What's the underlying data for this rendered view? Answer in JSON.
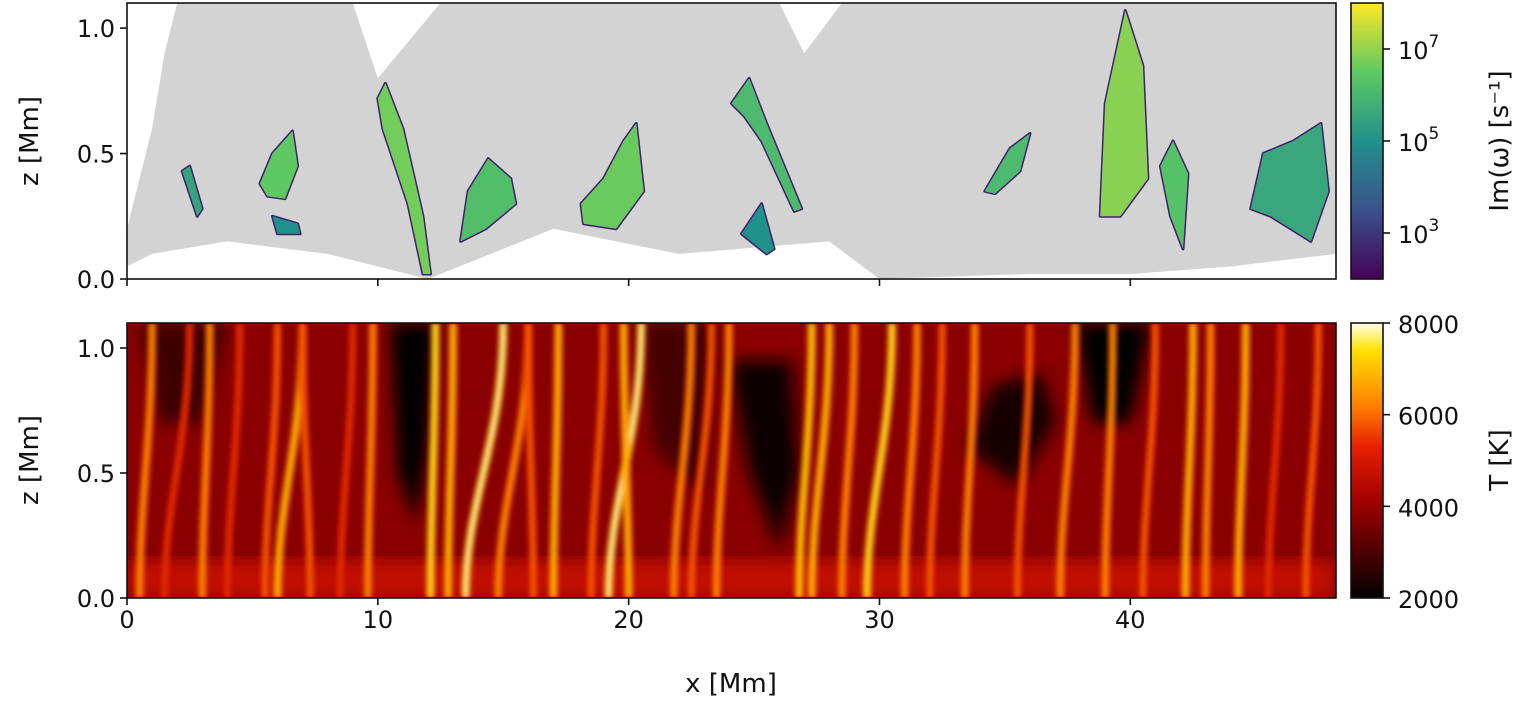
{
  "chart_data": [
    {
      "type": "heatmap",
      "xlabel": "",
      "ylabel": "z [Mm]",
      "xlim": [
        0,
        48.2
      ],
      "ylim": [
        0,
        1.1
      ],
      "xticks": [
        "0",
        "10",
        "20",
        "30",
        "40"
      ],
      "xtick_values": [
        0,
        10,
        20,
        30,
        40
      ],
      "xticklabels_visible": false,
      "yticks": [
        "0.0",
        "0.5",
        "1.0"
      ],
      "ytick_values": [
        0,
        0.5,
        1.0
      ],
      "colorbar": {
        "label": "Im(ω) [s⁻¹]",
        "scale": "log",
        "range": [
          100,
          100000000
        ],
        "ticks": [
          "10^7",
          "10^5",
          "10^3"
        ],
        "tick_values": [
          7,
          5,
          3
        ],
        "colormap": "viridis"
      },
      "masked_color": "#d3d3d3",
      "masked_region": [
        [
          0,
          0.2
        ],
        [
          1,
          0.6
        ],
        [
          1.5,
          0.9
        ],
        [
          2,
          1.1
        ],
        [
          9,
          1.1
        ],
        [
          10,
          0.8
        ],
        [
          12.5,
          1.1
        ],
        [
          26,
          1.1
        ],
        [
          27,
          0.9
        ],
        [
          28.5,
          1.1
        ],
        [
          48.2,
          1.1
        ],
        [
          48.2,
          0.1
        ],
        [
          44,
          0.05
        ],
        [
          40,
          0.02
        ],
        [
          36,
          0.02
        ],
        [
          30,
          0
        ],
        [
          28,
          0.15
        ],
        [
          22,
          0.1
        ],
        [
          17,
          0.2
        ],
        [
          12,
          0
        ],
        [
          8,
          0.1
        ],
        [
          4,
          0.15
        ],
        [
          1,
          0.1
        ],
        [
          0,
          0.05
        ]
      ],
      "unstable_regions": [
        {
          "log10_value": 6.5,
          "points": [
            [
              5.3,
              0.38
            ],
            [
              5.8,
              0.5
            ],
            [
              6.6,
              0.59
            ],
            [
              6.8,
              0.45
            ],
            [
              6.3,
              0.32
            ],
            [
              5.6,
              0.33
            ]
          ]
        },
        {
          "log10_value": 5.5,
          "points": [
            [
              2.2,
              0.43
            ],
            [
              2.5,
              0.45
            ],
            [
              3.0,
              0.28
            ],
            [
              2.8,
              0.25
            ]
          ]
        },
        {
          "log10_value": 5.0,
          "points": [
            [
              5.8,
              0.25
            ],
            [
              6.8,
              0.22
            ],
            [
              6.9,
              0.18
            ],
            [
              6.0,
              0.18
            ]
          ]
        },
        {
          "log10_value": 6.7,
          "points": [
            [
              10.0,
              0.72
            ],
            [
              10.3,
              0.78
            ],
            [
              11.0,
              0.6
            ],
            [
              11.8,
              0.25
            ],
            [
              12.1,
              0.02
            ],
            [
              11.8,
              0.02
            ],
            [
              11.2,
              0.3
            ],
            [
              10.2,
              0.6
            ]
          ]
        },
        {
          "log10_value": 6.2,
          "points": [
            [
              13.3,
              0.15
            ],
            [
              13.6,
              0.35
            ],
            [
              14.4,
              0.48
            ],
            [
              15.3,
              0.4
            ],
            [
              15.5,
              0.3
            ],
            [
              14.3,
              0.2
            ]
          ]
        },
        {
          "log10_value": 6.6,
          "points": [
            [
              18.1,
              0.3
            ],
            [
              19.0,
              0.4
            ],
            [
              19.8,
              0.55
            ],
            [
              20.3,
              0.62
            ],
            [
              20.6,
              0.35
            ],
            [
              19.5,
              0.2
            ],
            [
              18.2,
              0.22
            ]
          ]
        },
        {
          "log10_value": 6.1,
          "points": [
            [
              24.1,
              0.7
            ],
            [
              24.8,
              0.8
            ],
            [
              25.5,
              0.62
            ],
            [
              26.9,
              0.28
            ],
            [
              26.6,
              0.27
            ],
            [
              25.3,
              0.55
            ],
            [
              24.6,
              0.65
            ]
          ]
        },
        {
          "log10_value": 5.0,
          "points": [
            [
              24.5,
              0.18
            ],
            [
              25.3,
              0.3
            ],
            [
              25.8,
              0.12
            ],
            [
              25.5,
              0.1
            ]
          ]
        },
        {
          "log10_value": 6.1,
          "points": [
            [
              34.2,
              0.35
            ],
            [
              35.2,
              0.52
            ],
            [
              36.0,
              0.58
            ],
            [
              35.6,
              0.43
            ],
            [
              34.6,
              0.34
            ]
          ]
        },
        {
          "log10_value": 6.9,
          "points": [
            [
              38.8,
              0.25
            ],
            [
              39.0,
              0.7
            ],
            [
              39.8,
              1.07
            ],
            [
              40.5,
              0.85
            ],
            [
              40.7,
              0.4
            ],
            [
              39.6,
              0.25
            ]
          ]
        },
        {
          "log10_value": 6.3,
          "points": [
            [
              41.2,
              0.45
            ],
            [
              41.7,
              0.55
            ],
            [
              42.3,
              0.42
            ],
            [
              42.1,
              0.12
            ],
            [
              41.6,
              0.25
            ]
          ]
        },
        {
          "log10_value": 5.6,
          "points": [
            [
              44.8,
              0.28
            ],
            [
              45.3,
              0.5
            ],
            [
              46.5,
              0.55
            ],
            [
              47.6,
              0.62
            ],
            [
              47.9,
              0.35
            ],
            [
              47.2,
              0.15
            ],
            [
              45.6,
              0.25
            ]
          ]
        }
      ]
    },
    {
      "type": "heatmap",
      "xlabel": "x [Mm]",
      "ylabel": "z [Mm]",
      "xlim": [
        0,
        48.2
      ],
      "ylim": [
        0,
        1.1
      ],
      "xticks": [
        "0",
        "10",
        "20",
        "30",
        "40"
      ],
      "xtick_values": [
        0,
        10,
        20,
        30,
        40
      ],
      "yticks": [
        "0.0",
        "0.5",
        "1.0"
      ],
      "ytick_values": [
        0,
        0.5,
        1.0
      ],
      "colorbar": {
        "label": "T [K]",
        "scale": "linear",
        "range": [
          2000,
          8000
        ],
        "ticks": [
          "8000",
          "6000",
          "4000",
          "2000"
        ],
        "tick_values": [
          8000,
          6000,
          4000,
          2000
        ],
        "colormap": "hot"
      },
      "background_T": 4000,
      "cool_regions": [
        {
          "T": 2000,
          "points": [
            [
              10.5,
              1.1
            ],
            [
              10.8,
              0.5
            ],
            [
              11.5,
              0.3
            ],
            [
              12.0,
              0.6
            ],
            [
              12.3,
              1.1
            ]
          ]
        },
        {
          "T": 2200,
          "points": [
            [
              24.0,
              0.95
            ],
            [
              24.8,
              0.5
            ],
            [
              26.0,
              0.2
            ],
            [
              26.8,
              0.5
            ],
            [
              26.5,
              0.95
            ]
          ]
        },
        {
          "T": 2300,
          "points": [
            [
              33.5,
              0.6
            ],
            [
              35.5,
              0.45
            ],
            [
              37.0,
              0.7
            ],
            [
              36.5,
              0.9
            ],
            [
              34.5,
              0.85
            ]
          ]
        },
        {
          "T": 2000,
          "points": [
            [
              37.8,
              1.1
            ],
            [
              38.5,
              0.7
            ],
            [
              40.0,
              0.7
            ],
            [
              40.8,
              1.1
            ]
          ]
        },
        {
          "T": 2800,
          "points": [
            [
              0.5,
              1.1
            ],
            [
              1.3,
              0.7
            ],
            [
              3.0,
              0.7
            ],
            [
              4.0,
              1.1
            ]
          ]
        },
        {
          "T": 2900,
          "points": [
            [
              20.5,
              1.1
            ],
            [
              21.0,
              0.6
            ],
            [
              23.0,
              0.4
            ],
            [
              23.5,
              1.1
            ]
          ]
        }
      ],
      "hot_filaments": [
        [
          0.5,
          1.0,
          6500
        ],
        [
          1.5,
          2.5,
          5500
        ],
        [
          3.0,
          3.3,
          6500
        ],
        [
          4.0,
          4.5,
          5500
        ],
        [
          5.5,
          6.0,
          6000
        ],
        [
          6.0,
          7.0,
          7000
        ],
        [
          7.3,
          7.0,
          6000
        ],
        [
          8.5,
          9.0,
          5500
        ],
        [
          9.6,
          9.8,
          6500
        ],
        [
          12.1,
          12.3,
          7500
        ],
        [
          12.8,
          13.0,
          7000
        ],
        [
          13.5,
          15.0,
          7800
        ],
        [
          14.8,
          16.0,
          6500
        ],
        [
          16.2,
          16.0,
          6000
        ],
        [
          17.0,
          17.2,
          7000
        ],
        [
          18.5,
          19.0,
          6000
        ],
        [
          19.2,
          20.5,
          7800
        ],
        [
          20.0,
          19.8,
          7000
        ],
        [
          21.8,
          22.5,
          6500
        ],
        [
          22.5,
          23.3,
          6000
        ],
        [
          23.5,
          24.0,
          6500
        ],
        [
          26.8,
          27.3,
          7200
        ],
        [
          27.3,
          28.0,
          7000
        ],
        [
          28.5,
          29.0,
          6500
        ],
        [
          29.5,
          30.5,
          7500
        ],
        [
          31.0,
          31.5,
          6500
        ],
        [
          32.0,
          32.5,
          6000
        ],
        [
          33.4,
          33.8,
          6500
        ],
        [
          35.5,
          36.0,
          6000
        ],
        [
          37.2,
          37.8,
          6500
        ],
        [
          39.0,
          39.3,
          6500
        ],
        [
          40.5,
          41.0,
          6000
        ],
        [
          42.2,
          42.5,
          7000
        ],
        [
          43.0,
          43.2,
          6500
        ],
        [
          44.3,
          44.6,
          7000
        ],
        [
          45.5,
          46.0,
          5500
        ],
        [
          47.0,
          47.5,
          6000
        ]
      ]
    }
  ]
}
